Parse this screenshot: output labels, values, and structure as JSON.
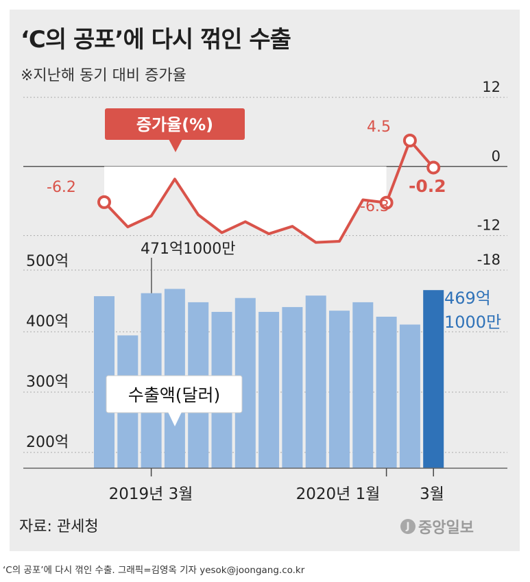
{
  "title": "‘C의 공포’에 다시 꺾인 수출",
  "subtitle": "※지난해 동기 대비 증가율",
  "source": "자료: 관세청",
  "logo": "중앙일보",
  "credit": "‘C의 공포’에 다시 꺾인 수출. 그래픽=김영옥 기자 yesok@joongang.co.kr",
  "colors": {
    "line": "#d9534a",
    "bar": "#95b8e0",
    "bar_highlight": "#2f72b8",
    "panel": "#ececec"
  },
  "chart_data": [
    {
      "type": "line",
      "series_label": "증가율(%)",
      "ylim": [
        -18,
        12
      ],
      "yticks": [
        "12",
        "0",
        "-12",
        "-18"
      ],
      "values": [
        -6.2,
        -10.5,
        -8.6,
        -2.2,
        -8.4,
        -11.5,
        -9.6,
        -11.7,
        -10.4,
        -13.2,
        -13.0,
        -5.8,
        -6.3,
        4.5,
        -0.2
      ],
      "annotations": [
        {
          "index": 0,
          "label": "-6.2"
        },
        {
          "index": 12,
          "label": "-6.3"
        },
        {
          "index": 13,
          "label": "4.5"
        },
        {
          "index": 14,
          "label": "-0.2"
        }
      ]
    },
    {
      "type": "bar",
      "series_label": "수출액(달러)",
      "unit": "억",
      "values": [
        459,
        394,
        464,
        471.1,
        449,
        433,
        456,
        433,
        441,
        460,
        435,
        449,
        425,
        412,
        469.1
      ],
      "highlight_index": 14,
      "yticks": [
        "500억",
        "400억",
        "300억",
        "200억"
      ],
      "annotations": [
        {
          "index": 3,
          "label": "471억1000만"
        },
        {
          "index": 14,
          "label_line1": "469억",
          "label_line2": "1000만"
        }
      ],
      "x_labels": [
        {
          "index": 3,
          "label": "2019년 3월"
        },
        {
          "index": 12,
          "label": "2020년 1월"
        },
        {
          "index": 14,
          "label": "3월"
        }
      ]
    }
  ]
}
